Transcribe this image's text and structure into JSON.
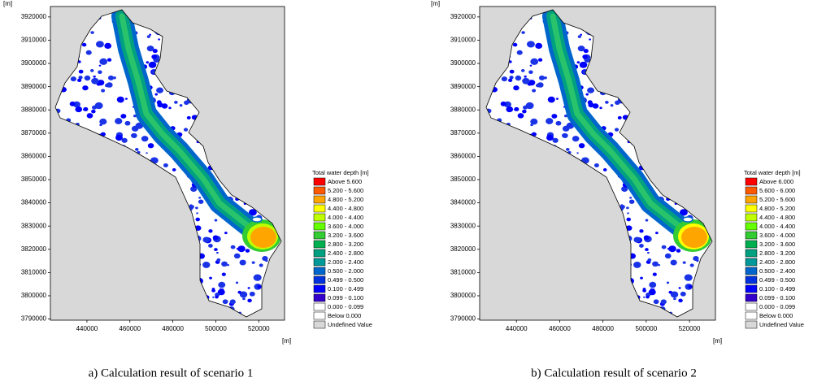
{
  "panels": [
    {
      "caption": "a) Calculation result of scenario 1",
      "y_unit": "[m]",
      "x_unit": "[m]",
      "xlim": [
        423000,
        532000
      ],
      "ylim": [
        3789500,
        3924500
      ],
      "xticks": [
        440000,
        460000,
        480000,
        500000,
        520000
      ],
      "yticks": [
        3790000,
        3800000,
        3810000,
        3820000,
        3830000,
        3840000,
        3850000,
        3860000,
        3870000,
        3880000,
        3890000,
        3900000,
        3910000,
        3920000
      ],
      "legend": {
        "title": "Total water depth [m]",
        "items": [
          {
            "label": "Above 5.600",
            "color": "#ff0000"
          },
          {
            "label": "5.200 - 5.600",
            "color": "#ff5a00"
          },
          {
            "label": "4.800 - 5.200",
            "color": "#ffa500"
          },
          {
            "label": "4.400 - 4.800",
            "color": "#ffff00"
          },
          {
            "label": "4.000 - 4.400",
            "color": "#c0ff00"
          },
          {
            "label": "3.600 - 4.000",
            "color": "#66ff00"
          },
          {
            "label": "3.200 - 3.600",
            "color": "#33cc33"
          },
          {
            "label": "2.800 - 3.200",
            "color": "#00b050"
          },
          {
            "label": "2.400 - 2.800",
            "color": "#00a080"
          },
          {
            "label": "2.000 - 2.400",
            "color": "#009999"
          },
          {
            "label": "0.500 - 2.000",
            "color": "#0066cc"
          },
          {
            "label": "0.499 - 0.500",
            "color": "#0033dd"
          },
          {
            "label": "0.100 - 0.499",
            "color": "#0000ff"
          },
          {
            "label": "0.099 - 0.100",
            "color": "#3300cc"
          },
          {
            "label": "0.000 - 0.099",
            "color": "#ffffff"
          },
          {
            "label": "Below  0.000",
            "color": "#ffffff"
          },
          {
            "label": "Undefined Value",
            "color": "#d8d8d8"
          }
        ]
      }
    },
    {
      "caption": "b) Calculation result of scenario 2",
      "y_unit": "[m]",
      "x_unit": "[m]",
      "xlim": [
        423000,
        532000
      ],
      "ylim": [
        3789500,
        3924500
      ],
      "xticks": [
        440000,
        460000,
        480000,
        500000,
        520000
      ],
      "yticks": [
        3790000,
        3800000,
        3810000,
        3820000,
        3830000,
        3840000,
        3850000,
        3860000,
        3870000,
        3880000,
        3890000,
        3900000,
        3910000,
        3920000
      ],
      "legend": {
        "title": "Total water depth [m]",
        "items": [
          {
            "label": "Above 6.000",
            "color": "#ff0000"
          },
          {
            "label": "5.600 - 6.000",
            "color": "#ff5a00"
          },
          {
            "label": "5.200 - 5.600",
            "color": "#ffa500"
          },
          {
            "label": "4.800 - 5.200",
            "color": "#ffff00"
          },
          {
            "label": "4.400 - 4.800",
            "color": "#c0ff00"
          },
          {
            "label": "4.000 - 4.400",
            "color": "#66ff00"
          },
          {
            "label": "3.600 - 4.000",
            "color": "#33cc33"
          },
          {
            "label": "3.200 - 3.600",
            "color": "#00b050"
          },
          {
            "label": "2.800 - 3.200",
            "color": "#00a080"
          },
          {
            "label": "2.400 - 2.800",
            "color": "#009999"
          },
          {
            "label": "0.500 - 2.400",
            "color": "#0066cc"
          },
          {
            "label": "0.499 - 0.500",
            "color": "#0033dd"
          },
          {
            "label": "0.100 - 0.499",
            "color": "#0000ff"
          },
          {
            "label": "0.099 - 0.100",
            "color": "#3300cc"
          },
          {
            "label": "0.000 - 0.099",
            "color": "#ffffff"
          },
          {
            "label": "Below  0.000",
            "color": "#ffffff"
          },
          {
            "label": "Undefined Value",
            "color": "#d8d8d8"
          }
        ]
      }
    }
  ]
}
